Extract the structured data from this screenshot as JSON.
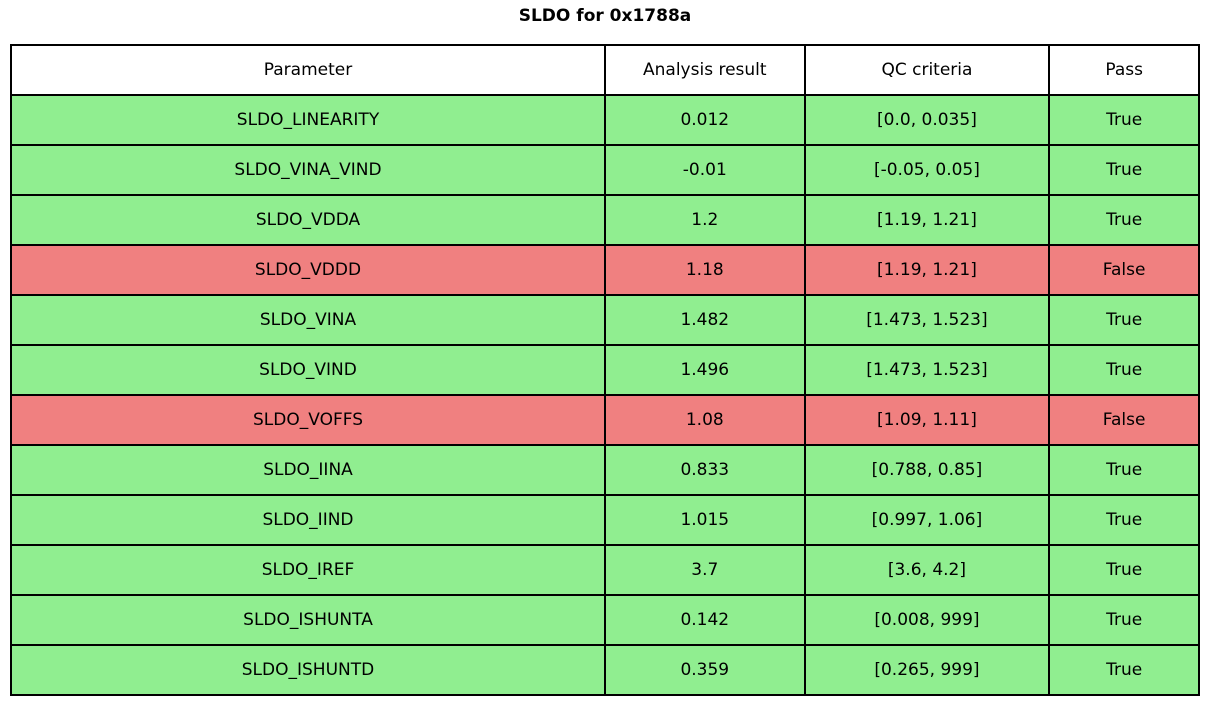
{
  "title": "SLDO for 0x1788a",
  "colors": {
    "pass_row": "#90EE90",
    "fail_row": "#F08080",
    "border": "#000000",
    "header_bg": "#FFFFFF",
    "text": "#000000"
  },
  "chart_data": {
    "type": "table",
    "title": "SLDO for 0x1788a",
    "columns": [
      "Parameter",
      "Analysis result",
      "QC criteria",
      "Pass"
    ],
    "rows": [
      {
        "parameter": "SLDO_LINEARITY",
        "result": "0.012",
        "criteria": "[0.0, 0.035]",
        "pass": "True"
      },
      {
        "parameter": "SLDO_VINA_VIND",
        "result": "-0.01",
        "criteria": "[-0.05, 0.05]",
        "pass": "True"
      },
      {
        "parameter": "SLDO_VDDA",
        "result": "1.2",
        "criteria": "[1.19, 1.21]",
        "pass": "True"
      },
      {
        "parameter": "SLDO_VDDD",
        "result": "1.18",
        "criteria": "[1.19, 1.21]",
        "pass": "False"
      },
      {
        "parameter": "SLDO_VINA",
        "result": "1.482",
        "criteria": "[1.473, 1.523]",
        "pass": "True"
      },
      {
        "parameter": "SLDO_VIND",
        "result": "1.496",
        "criteria": "[1.473, 1.523]",
        "pass": "True"
      },
      {
        "parameter": "SLDO_VOFFS",
        "result": "1.08",
        "criteria": "[1.09, 1.11]",
        "pass": "False"
      },
      {
        "parameter": "SLDO_IINA",
        "result": "0.833",
        "criteria": "[0.788, 0.85]",
        "pass": "True"
      },
      {
        "parameter": "SLDO_IIND",
        "result": "1.015",
        "criteria": "[0.997, 1.06]",
        "pass": "True"
      },
      {
        "parameter": "SLDO_IREF",
        "result": "3.7",
        "criteria": "[3.6, 4.2]",
        "pass": "True"
      },
      {
        "parameter": "SLDO_ISHUNTA",
        "result": "0.142",
        "criteria": "[0.008, 999]",
        "pass": "True"
      },
      {
        "parameter": "SLDO_ISHUNTD",
        "result": "0.359",
        "criteria": "[0.265, 999]",
        "pass": "True"
      }
    ]
  }
}
